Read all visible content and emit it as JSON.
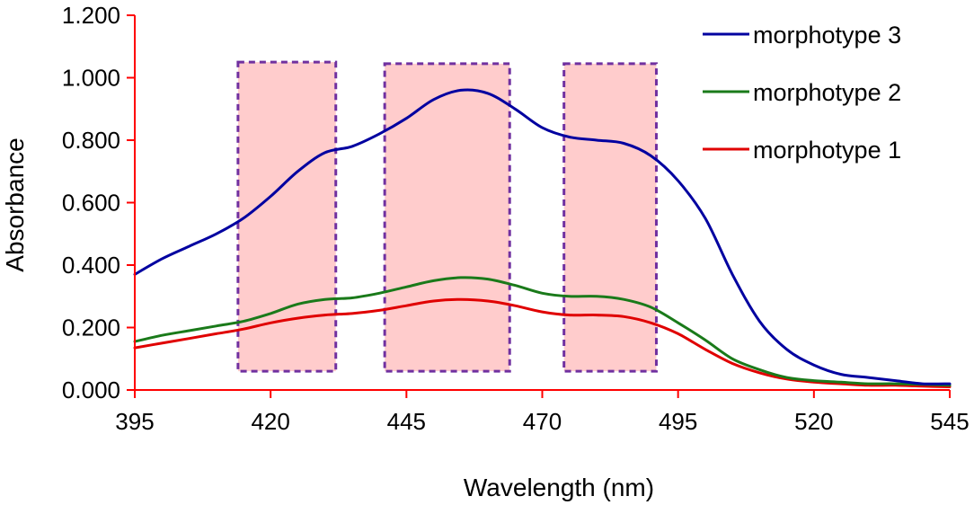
{
  "chart_data": {
    "type": "line",
    "title": "",
    "xlabel": "Wavelength (nm)",
    "ylabel": "Absorbance",
    "xlim": [
      395,
      545
    ],
    "ylim": [
      0,
      1.2
    ],
    "x_ticks": [
      "395",
      "420",
      "445",
      "470",
      "495",
      "520",
      "545"
    ],
    "y_ticks": [
      "0.000",
      "0.200",
      "0.400",
      "0.600",
      "0.800",
      "1.000",
      "1.200"
    ],
    "grid": false,
    "legend_position": "top-right",
    "x": [
      395,
      400,
      405,
      410,
      415,
      420,
      425,
      430,
      435,
      440,
      445,
      450,
      455,
      460,
      465,
      470,
      475,
      480,
      485,
      490,
      495,
      500,
      505,
      510,
      515,
      520,
      525,
      530,
      535,
      540,
      545
    ],
    "series": [
      {
        "name": "morphotype 3",
        "color": "#0000a0",
        "values": [
          0.37,
          0.42,
          0.46,
          0.5,
          0.55,
          0.62,
          0.7,
          0.76,
          0.78,
          0.82,
          0.87,
          0.93,
          0.96,
          0.95,
          0.9,
          0.84,
          0.81,
          0.8,
          0.79,
          0.75,
          0.67,
          0.55,
          0.37,
          0.22,
          0.13,
          0.08,
          0.05,
          0.04,
          0.03,
          0.02,
          0.02
        ]
      },
      {
        "name": "morphotype 2",
        "color": "#1a7a1a",
        "values": [
          0.155,
          0.175,
          0.19,
          0.205,
          0.22,
          0.245,
          0.275,
          0.29,
          0.295,
          0.31,
          0.33,
          0.35,
          0.36,
          0.355,
          0.335,
          0.31,
          0.3,
          0.3,
          0.29,
          0.265,
          0.215,
          0.16,
          0.1,
          0.065,
          0.04,
          0.03,
          0.025,
          0.02,
          0.02,
          0.018,
          0.015
        ]
      },
      {
        "name": "morphotype 1",
        "color": "#e00000",
        "values": [
          0.135,
          0.15,
          0.165,
          0.18,
          0.195,
          0.215,
          0.23,
          0.24,
          0.245,
          0.255,
          0.27,
          0.285,
          0.29,
          0.285,
          0.27,
          0.25,
          0.24,
          0.24,
          0.235,
          0.215,
          0.18,
          0.13,
          0.085,
          0.055,
          0.035,
          0.025,
          0.02,
          0.015,
          0.015,
          0.012,
          0.01
        ]
      }
    ],
    "annotations": [
      {
        "type": "shaded-box",
        "x0": 414,
        "x1": 432,
        "y0": 0.06,
        "y1": 1.05
      },
      {
        "type": "shaded-box",
        "x0": 441,
        "x1": 464,
        "y0": 0.06,
        "y1": 1.045
      },
      {
        "type": "shaded-box",
        "x0": 474,
        "x1": 491,
        "y0": 0.06,
        "y1": 1.045
      }
    ],
    "colors": {
      "axis": "#ff0000",
      "box_fill": "#ffcccc",
      "box_stroke": "#7030a0"
    }
  }
}
